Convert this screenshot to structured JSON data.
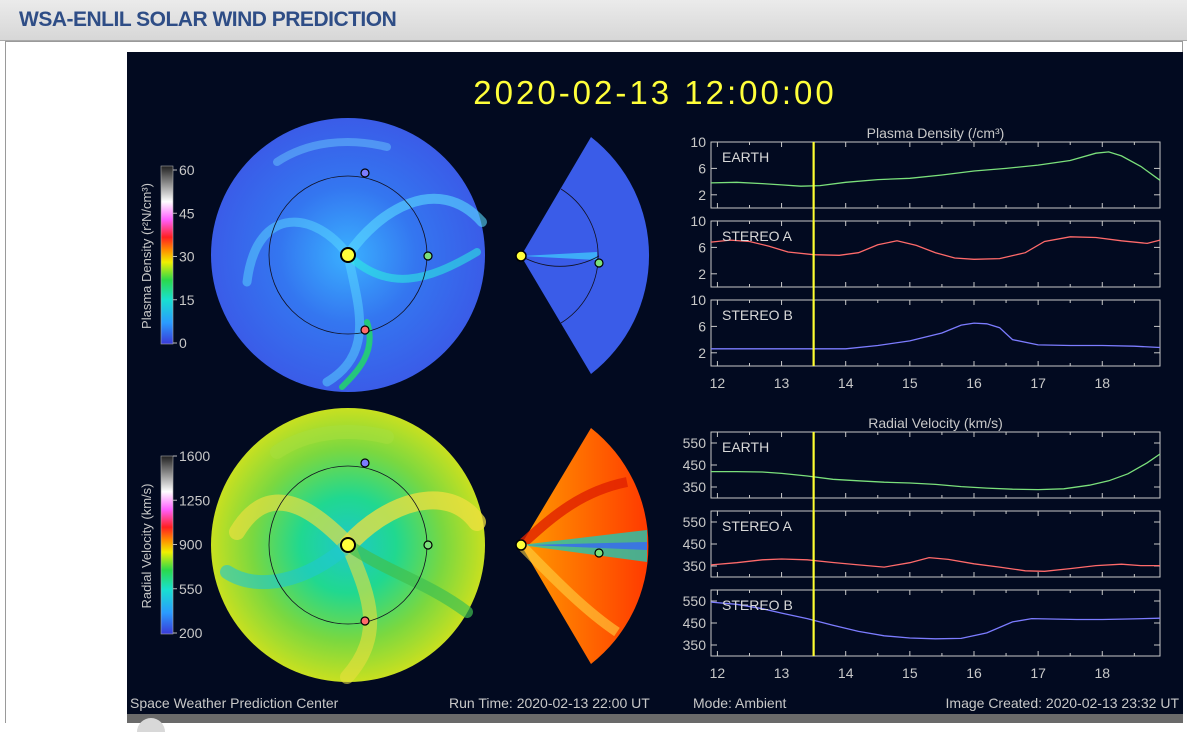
{
  "header": {
    "title": "WSA-ENLIL SOLAR WIND PREDICTION"
  },
  "timestamp": "2020-02-13  12:00:00",
  "footer": {
    "org": "Space Weather Prediction Center",
    "run_time": "Run Time: 2020-02-13 22:00 UT",
    "mode": "Mode: Ambient",
    "created": "Image Created: 2020-02-13 23:32 UT"
  },
  "colorbars": {
    "density": {
      "label": "Plasma Density (r²N/cm³)",
      "ticks": [
        "60",
        "45",
        "30",
        "15",
        "0"
      ]
    },
    "velocity": {
      "label": "Radial Velocity (km/s)",
      "ticks": [
        "1600",
        "1250",
        "900",
        "550",
        "200"
      ]
    }
  },
  "colors": {
    "earth": "#7be07b",
    "stereo_a": "#ff6a6a",
    "stereo_b": "#7c7cff",
    "marker": "#ffff4a",
    "now_line": "#ffff30"
  },
  "chart_data": [
    {
      "type": "line",
      "title": "Plasma Density (/cm³)",
      "x_ticks": [
        "12",
        "13",
        "14",
        "15",
        "16",
        "17",
        "18"
      ],
      "xlim": [
        11.9,
        18.9
      ],
      "ylim": [
        0,
        10
      ],
      "y_ticks": [
        "10",
        "6",
        "2"
      ],
      "now": 13.5,
      "series": [
        {
          "name": "EARTH",
          "color": "#7be07b",
          "x": [
            11.9,
            12.3,
            12.7,
            13.0,
            13.3,
            13.6,
            14.0,
            14.5,
            15.0,
            15.5,
            16.0,
            16.5,
            17.0,
            17.5,
            17.9,
            18.1,
            18.3,
            18.6,
            18.9
          ],
          "y": [
            3.8,
            3.9,
            3.7,
            3.5,
            3.3,
            3.4,
            3.9,
            4.3,
            4.5,
            5.0,
            5.6,
            6.0,
            6.5,
            7.2,
            8.3,
            8.5,
            7.9,
            6.3,
            4.2
          ]
        },
        {
          "name": "STEREO A",
          "color": "#ff6a6a",
          "x": [
            11.9,
            12.2,
            12.5,
            12.8,
            13.1,
            13.5,
            13.9,
            14.2,
            14.5,
            14.8,
            15.1,
            15.4,
            15.7,
            16.0,
            16.4,
            16.8,
            17.1,
            17.5,
            17.9,
            18.3,
            18.7,
            18.9
          ],
          "y": [
            6.8,
            7.1,
            6.9,
            6.2,
            5.3,
            4.9,
            4.8,
            5.2,
            6.4,
            7.0,
            6.3,
            5.2,
            4.4,
            4.2,
            4.3,
            5.2,
            6.9,
            7.6,
            7.5,
            7.0,
            6.6,
            7.1
          ]
        },
        {
          "name": "STEREO B",
          "color": "#7c7cff",
          "x": [
            11.9,
            12.5,
            13.0,
            13.5,
            14.0,
            14.5,
            15.0,
            15.5,
            15.8,
            16.0,
            16.2,
            16.4,
            16.6,
            17.0,
            17.5,
            18.0,
            18.5,
            18.9
          ],
          "y": [
            2.6,
            2.6,
            2.6,
            2.6,
            2.6,
            3.1,
            3.8,
            5.0,
            6.2,
            6.5,
            6.4,
            5.8,
            4.0,
            3.2,
            3.1,
            3.1,
            3.0,
            2.8
          ]
        }
      ]
    },
    {
      "type": "line",
      "title": "Radial Velocity (km/s)",
      "x_ticks": [
        "12",
        "13",
        "14",
        "15",
        "16",
        "17",
        "18"
      ],
      "xlim": [
        11.9,
        18.9
      ],
      "ylim": [
        300,
        600
      ],
      "y_ticks": [
        "550",
        "450",
        "350"
      ],
      "now": 13.5,
      "series": [
        {
          "name": "EARTH",
          "color": "#7be07b",
          "x": [
            11.9,
            12.3,
            12.7,
            13.0,
            13.4,
            13.8,
            14.2,
            14.6,
            15.0,
            15.4,
            15.8,
            16.2,
            16.6,
            17.0,
            17.4,
            17.8,
            18.1,
            18.4,
            18.7,
            18.9
          ],
          "y": [
            420,
            420,
            418,
            412,
            400,
            385,
            378,
            372,
            368,
            362,
            352,
            345,
            340,
            338,
            342,
            358,
            378,
            410,
            460,
            500
          ]
        },
        {
          "name": "STEREO A",
          "color": "#ff6a6a",
          "x": [
            11.9,
            12.3,
            12.7,
            13.0,
            13.4,
            13.8,
            14.2,
            14.6,
            15.0,
            15.3,
            15.6,
            16.0,
            16.4,
            16.8,
            17.1,
            17.5,
            17.9,
            18.3,
            18.6,
            18.9
          ],
          "y": [
            355,
            365,
            378,
            382,
            378,
            366,
            355,
            345,
            365,
            388,
            380,
            360,
            345,
            328,
            326,
            338,
            352,
            358,
            352,
            352
          ]
        },
        {
          "name": "STEREO B",
          "color": "#7c7cff",
          "x": [
            11.9,
            12.3,
            12.7,
            13.0,
            13.4,
            13.8,
            14.2,
            14.6,
            15.0,
            15.4,
            15.8,
            16.2,
            16.6,
            16.9,
            17.2,
            17.6,
            18.0,
            18.4,
            18.9
          ],
          "y": [
            545,
            535,
            515,
            495,
            470,
            440,
            412,
            392,
            382,
            378,
            380,
            405,
            455,
            470,
            468,
            466,
            466,
            468,
            472
          ]
        }
      ]
    }
  ]
}
